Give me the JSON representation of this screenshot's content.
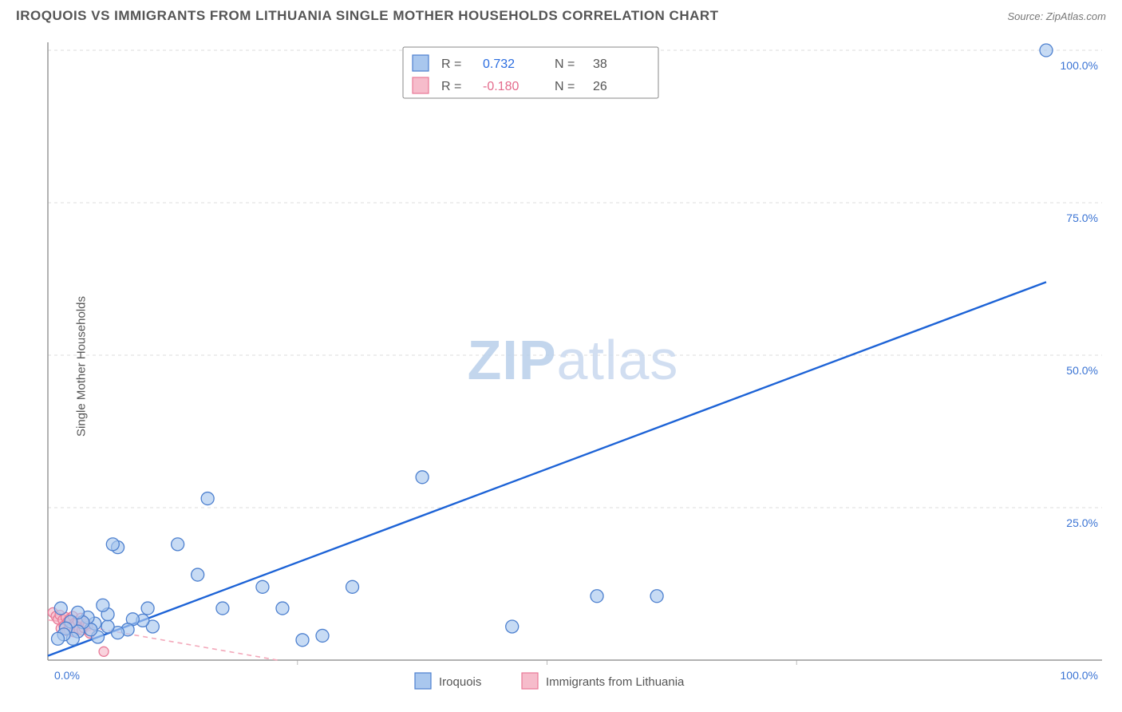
{
  "header": {
    "title": "IROQUOIS VS IMMIGRANTS FROM LITHUANIA SINGLE MOTHER HOUSEHOLDS CORRELATION CHART",
    "source_prefix": "Source: ",
    "source_site": "ZipAtlas.com"
  },
  "watermark": {
    "zip": "ZIP",
    "atlas": "atlas"
  },
  "ylabel": "Single Mother Households",
  "chart": {
    "type": "scatter",
    "xlim": [
      0,
      100
    ],
    "ylim": [
      0,
      100
    ],
    "x_ticks": [
      0,
      25,
      50,
      75,
      100
    ],
    "y_ticks": [
      25,
      50,
      75,
      100
    ],
    "y_tick_labels": [
      "25.0%",
      "50.0%",
      "75.0%",
      "100.0%"
    ],
    "x_origin_label": "0.0%",
    "x_max_label": "100.0%",
    "background_color": "#ffffff",
    "grid_color": "#dddddd",
    "axis_color": "#999999",
    "marker_radius": 8,
    "marker_radius_small": 6
  },
  "series": {
    "blue": {
      "label": "Iroquois",
      "color_fill": "#a9c7ee",
      "color_stroke": "#4d80cf",
      "trend_color": "#1d63d6",
      "R": "0.732",
      "N": "38",
      "trend": {
        "x1": 0,
        "y1": 0.7,
        "x2": 100,
        "y2": 62
      },
      "points": [
        [
          100,
          100
        ],
        [
          61,
          10.5
        ],
        [
          55,
          10.5
        ],
        [
          46.5,
          5.5
        ],
        [
          37.5,
          30
        ],
        [
          30.5,
          12
        ],
        [
          27.5,
          4
        ],
        [
          25.5,
          3.3
        ],
        [
          23.5,
          8.5
        ],
        [
          21.5,
          12
        ],
        [
          17.5,
          8.5
        ],
        [
          16,
          26.5
        ],
        [
          15,
          14
        ],
        [
          13,
          19
        ],
        [
          10.5,
          5.5
        ],
        [
          10,
          8.5
        ],
        [
          9.5,
          6.5
        ],
        [
          8.5,
          6.7
        ],
        [
          8,
          5
        ],
        [
          7,
          18.5
        ],
        [
          7,
          4.5
        ],
        [
          6.5,
          19
        ],
        [
          6,
          5.5
        ],
        [
          6,
          7.5
        ],
        [
          5.5,
          9
        ],
        [
          5,
          3.8
        ],
        [
          4.7,
          6
        ],
        [
          4.3,
          5
        ],
        [
          4,
          7
        ],
        [
          3.5,
          6.2
        ],
        [
          3,
          4.7
        ],
        [
          3,
          7.8
        ],
        [
          2.5,
          3.5
        ],
        [
          2.3,
          6.3
        ],
        [
          1.8,
          5.2
        ],
        [
          1.6,
          4.2
        ],
        [
          1.3,
          8.5
        ],
        [
          1,
          3.5
        ]
      ]
    },
    "pink": {
      "label": "Immigrants from Lithuania",
      "color_fill": "#f6bccb",
      "color_stroke": "#e97997",
      "trend_color": "#f3a8ba",
      "R": "-0.180",
      "N": "26",
      "trend": {
        "x1": 0,
        "y1": 6.6,
        "x2": 23,
        "y2": 0
      },
      "points": [
        [
          5.6,
          1.4
        ],
        [
          0.5,
          7.8
        ],
        [
          0.8,
          7.2
        ],
        [
          1.0,
          6.7
        ],
        [
          1.2,
          7.4
        ],
        [
          1.3,
          5.2
        ],
        [
          1.5,
          6.6
        ],
        [
          1.6,
          5.6
        ],
        [
          1.8,
          7.0
        ],
        [
          1.9,
          4.8
        ],
        [
          2.0,
          6.3
        ],
        [
          2.1,
          5.0
        ],
        [
          2.2,
          6.8
        ],
        [
          2.4,
          5.4
        ],
        [
          2.5,
          7.2
        ],
        [
          2.6,
          4.6
        ],
        [
          2.7,
          6.1
        ],
        [
          2.8,
          5.8
        ],
        [
          3.0,
          6.4
        ],
        [
          3.1,
          5.1
        ],
        [
          3.3,
          6.9
        ],
        [
          3.4,
          4.9
        ],
        [
          3.6,
          5.3
        ],
        [
          3.8,
          6.0
        ],
        [
          4.0,
          5.6
        ],
        [
          4.2,
          4.4
        ]
      ]
    }
  },
  "corr_legend": {
    "R_label": "R =",
    "N_label": "N ="
  },
  "bottom_legend": {
    "series": [
      "blue",
      "pink"
    ]
  }
}
